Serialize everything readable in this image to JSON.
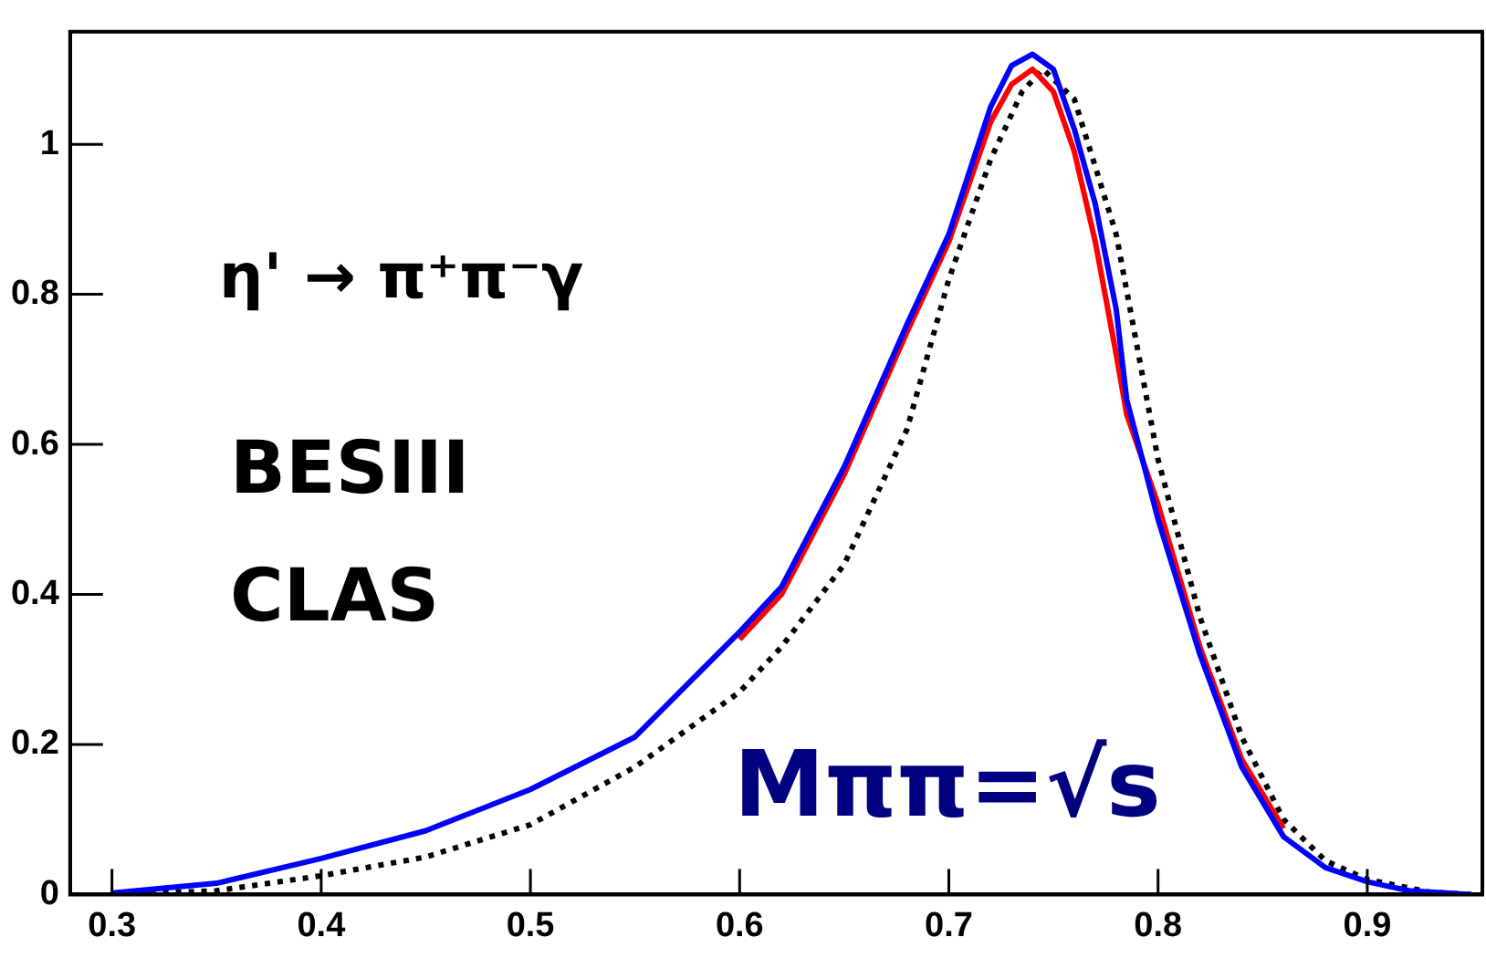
{
  "chart_data": {
    "type": "line",
    "annotations": [
      "η' → π⁺π⁻γ",
      "BESIII",
      "CLAS",
      "Mππ=√s"
    ],
    "xlim": [
      0.28,
      0.955
    ],
    "xticks": [
      0.3,
      0.4,
      0.5,
      0.6,
      0.7,
      0.8,
      0.9
    ],
    "ylim": [
      0,
      1.15
    ],
    "yticks": [
      0,
      0.2,
      0.4,
      0.6,
      0.8,
      1
    ],
    "grid": false,
    "legend": false,
    "marker": "none",
    "series": [
      {
        "color": "#0000ff",
        "line_style": "solid",
        "x": [
          0.3,
          0.35,
          0.4,
          0.45,
          0.5,
          0.55,
          0.6,
          0.62,
          0.65,
          0.68,
          0.7,
          0.72,
          0.73,
          0.74,
          0.75,
          0.76,
          0.77,
          0.78,
          0.785,
          0.8,
          0.82,
          0.84,
          0.86,
          0.88,
          0.9,
          0.92,
          0.95
        ],
        "values": [
          0.002,
          0.015,
          0.048,
          0.085,
          0.14,
          0.21,
          0.35,
          0.41,
          0.57,
          0.76,
          0.88,
          1.05,
          1.105,
          1.12,
          1.1,
          1.02,
          0.92,
          0.78,
          0.66,
          0.5,
          0.32,
          0.17,
          0.077,
          0.036,
          0.017,
          0.005,
          0
        ]
      },
      {
        "color": "#ff0000",
        "line_style": "solid",
        "x": [
          0.6,
          0.62,
          0.65,
          0.68,
          0.7,
          0.72,
          0.73,
          0.74,
          0.75,
          0.76,
          0.77,
          0.78,
          0.785,
          0.8,
          0.82,
          0.84,
          0.86
        ],
        "values": [
          0.34,
          0.4,
          0.56,
          0.75,
          0.87,
          1.03,
          1.08,
          1.1,
          1.07,
          0.99,
          0.87,
          0.72,
          0.64,
          0.52,
          0.33,
          0.18,
          0.088
        ]
      },
      {
        "color": "#000000",
        "line_style": "dotted",
        "x": [
          0.3,
          0.35,
          0.4,
          0.45,
          0.5,
          0.55,
          0.6,
          0.62,
          0.65,
          0.68,
          0.7,
          0.72,
          0.735,
          0.745,
          0.76,
          0.78,
          0.8,
          0.82,
          0.84,
          0.86,
          0.88,
          0.9,
          0.93,
          0.95
        ],
        "values": [
          0,
          0.005,
          0.025,
          0.05,
          0.093,
          0.17,
          0.27,
          0.33,
          0.44,
          0.62,
          0.82,
          0.98,
          1.07,
          1.1,
          1.06,
          0.88,
          0.58,
          0.37,
          0.21,
          0.1,
          0.045,
          0.02,
          0.003,
          0
        ]
      }
    ]
  }
}
